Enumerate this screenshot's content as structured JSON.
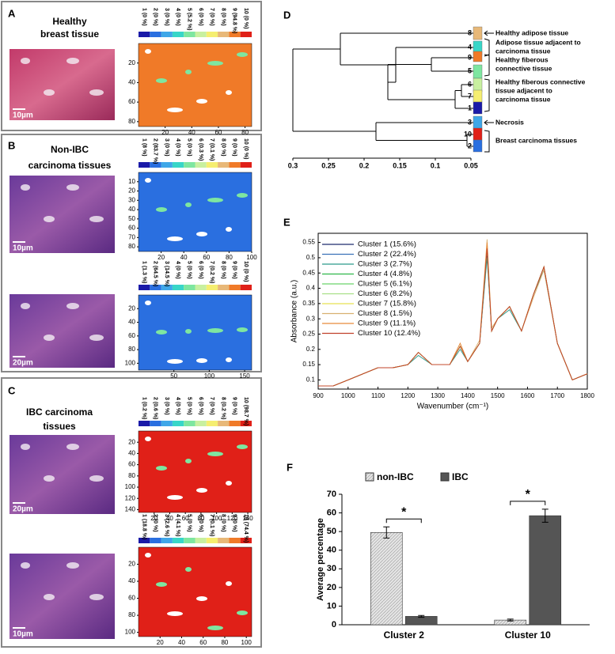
{
  "panels": {
    "cluster_colors": [
      "#1a1aa8",
      "#2a6fe0",
      "#3fa7e8",
      "#38d6c8",
      "#7ee6a0",
      "#c8f0a0",
      "#f5ee70",
      "#e8b878",
      "#f07a28",
      "#e02018"
    ],
    "A": {
      "letter": "A",
      "title": [
        "Healthy",
        "breast tissue"
      ],
      "maps": [
        {
          "colorbar": [
            "1 (0 %)",
            "2 (0 %)",
            "3 (0 %)",
            "4 (0 %)",
            "5 (5.2 %)",
            "6 (0 %)",
            "7 (0 %)",
            "8 (0 %)",
            "9 (94.8 %)",
            "10 (0 %)"
          ],
          "scale_bar": "10µm",
          "xlim": [
            0,
            85
          ],
          "ylim": [
            0,
            85
          ],
          "xticks": [
            20,
            40,
            60,
            80
          ],
          "yticks": [
            20,
            40,
            60,
            80
          ]
        }
      ]
    },
    "B": {
      "letter": "B",
      "title": [
        "Non-IBC",
        "carcinoma tissues"
      ],
      "maps": [
        {
          "colorbar": [
            "1 (8 %)",
            "2 (83.7 %)",
            "3 (0 %)",
            "4 (0 %)",
            "5 (0 %)",
            "6 (0.3 %)",
            "7 (0.1 %)",
            "8 (0 %)",
            "9 (0 %)",
            "10 (0 %)"
          ],
          "scale_bar": "10µm",
          "xlim": [
            0,
            100
          ],
          "ylim": [
            0,
            85
          ],
          "xticks": [
            20,
            40,
            60,
            80,
            100
          ],
          "yticks": [
            10,
            20,
            30,
            40,
            50,
            60,
            70,
            80
          ]
        },
        {
          "colorbar": [
            "1 (1.3 %)",
            "2 (64.5 %)",
            "3 (14.5 %)",
            "4 (0 %)",
            "5 (0 %)",
            "6 (0 %)",
            "7 (0.2 %)",
            "8 (0 %)",
            "9 (0 %)",
            "10 (0 %)"
          ],
          "scale_bar": "20µm",
          "xlim": [
            0,
            160
          ],
          "ylim": [
            0,
            110
          ],
          "xticks": [
            50,
            100,
            150
          ],
          "yticks": [
            20,
            40,
            60,
            80,
            100
          ]
        }
      ]
    },
    "C": {
      "letter": "C",
      "title": [
        "IBC carcinoma",
        "tissues"
      ],
      "maps": [
        {
          "colorbar": [
            "1 (0.2 %)",
            "2 (0.6 %)",
            "3 (0 %)",
            "4 (0 %)",
            "5 (0 %)",
            "6 (0 %)",
            "7 (0 %)",
            "8 (0.2 %)",
            "9 (0 %)",
            "10 (98.7 %)"
          ],
          "scale_bar": "20µm",
          "xlim": [
            0,
            145
          ],
          "ylim": [
            0,
            145
          ],
          "xticks": [
            20,
            40,
            60,
            80,
            100,
            120,
            140
          ],
          "yticks": [
            20,
            40,
            60,
            80,
            100,
            120,
            140
          ]
        },
        {
          "colorbar": [
            "1 (18.8 %)",
            "2 (0 %)",
            "3 (2.6 %)",
            "4 (4.1 %)",
            "5 (0 %)",
            "6 (0 %)",
            "7 (0.1 %)",
            "8 (0 %)",
            "9 (0 %)",
            "10 (74.4 %)"
          ],
          "scale_bar": "10µm",
          "xlim": [
            0,
            105
          ],
          "ylim": [
            0,
            105
          ],
          "xticks": [
            20,
            40,
            60,
            80,
            100
          ],
          "yticks": [
            20,
            40,
            60,
            80,
            100
          ]
        }
      ]
    },
    "D": {
      "letter": "D",
      "leaves": [
        8,
        4,
        9,
        5,
        6,
        7,
        1,
        3,
        10,
        2
      ],
      "xlim": [
        0.3,
        0.05
      ],
      "xticks": [
        0.3,
        0.25,
        0.2,
        0.15,
        0.1,
        0.05
      ],
      "annotations": [
        [
          "Healthy adipose tissue"
        ],
        [
          "Adipose tissue adjacent to",
          "carcinoma tissue"
        ],
        [
          "Healthy fiberous",
          "connective tissue"
        ],
        [
          "Healthy fiberous connective",
          "tissue adjacent to",
          "carcinoma tissue"
        ],
        [
          "Necrosis"
        ],
        [
          "Breast carcinoma tissues"
        ]
      ]
    }
  },
  "chart_data": [
    {
      "type": "line",
      "panel": "E",
      "x_label": "Wavenumber (cm⁻¹)",
      "y_label": "Absorbance (a.u.)",
      "x": [
        900,
        950,
        1000,
        1050,
        1100,
        1150,
        1200,
        1235,
        1280,
        1340,
        1375,
        1400,
        1440,
        1465,
        1480,
        1500,
        1540,
        1580,
        1620,
        1655,
        1700,
        1750,
        1800
      ],
      "xlim": [
        900,
        1800
      ],
      "ylim": [
        0.07,
        0.58
      ],
      "xticks": [
        900,
        1000,
        1100,
        1200,
        1300,
        1400,
        1500,
        1600,
        1700,
        1800
      ],
      "yticks": [
        0.1,
        0.15,
        0.2,
        0.25,
        0.3,
        0.35,
        0.4,
        0.45,
        0.5,
        0.55
      ],
      "series": [
        {
          "name": "Cluster 1 (15.6%)",
          "color": "#1f2a6e",
          "values": [
            0.08,
            0.08,
            0.1,
            0.12,
            0.14,
            0.14,
            0.15,
            0.19,
            0.15,
            0.15,
            0.21,
            0.16,
            0.22,
            0.52,
            0.26,
            0.3,
            0.34,
            0.26,
            0.38,
            0.47,
            0.22,
            0.1,
            0.12
          ]
        },
        {
          "name": "Cluster 2 (22.4%)",
          "color": "#3a72b8",
          "values": [
            0.08,
            0.08,
            0.1,
            0.12,
            0.14,
            0.14,
            0.15,
            0.19,
            0.15,
            0.15,
            0.21,
            0.16,
            0.22,
            0.53,
            0.26,
            0.3,
            0.34,
            0.26,
            0.38,
            0.47,
            0.22,
            0.1,
            0.12
          ]
        },
        {
          "name": "Cluster 3 (2.7%)",
          "color": "#2a9a8a",
          "values": [
            0.08,
            0.08,
            0.1,
            0.12,
            0.14,
            0.14,
            0.15,
            0.18,
            0.15,
            0.15,
            0.2,
            0.16,
            0.22,
            0.5,
            0.26,
            0.3,
            0.33,
            0.26,
            0.38,
            0.46,
            0.22,
            0.1,
            0.12
          ]
        },
        {
          "name": "Cluster 4 (4.8%)",
          "color": "#2fb84a",
          "values": [
            0.08,
            0.08,
            0.1,
            0.12,
            0.14,
            0.14,
            0.15,
            0.19,
            0.15,
            0.15,
            0.21,
            0.16,
            0.22,
            0.54,
            0.26,
            0.3,
            0.34,
            0.26,
            0.38,
            0.47,
            0.22,
            0.1,
            0.12
          ]
        },
        {
          "name": "Cluster 5 (6.1%)",
          "color": "#6ad46a",
          "values": [
            0.08,
            0.08,
            0.1,
            0.12,
            0.14,
            0.14,
            0.15,
            0.19,
            0.15,
            0.15,
            0.21,
            0.16,
            0.22,
            0.53,
            0.26,
            0.3,
            0.34,
            0.26,
            0.38,
            0.47,
            0.22,
            0.1,
            0.12
          ]
        },
        {
          "name": "Cluster 6 (8.2%)",
          "color": "#a8e088",
          "values": [
            0.08,
            0.08,
            0.1,
            0.12,
            0.14,
            0.14,
            0.15,
            0.19,
            0.15,
            0.15,
            0.21,
            0.16,
            0.22,
            0.53,
            0.26,
            0.3,
            0.34,
            0.26,
            0.38,
            0.47,
            0.22,
            0.1,
            0.12
          ]
        },
        {
          "name": "Cluster 7 (15.8%)",
          "color": "#e8e050",
          "values": [
            0.08,
            0.08,
            0.1,
            0.12,
            0.14,
            0.14,
            0.15,
            0.19,
            0.15,
            0.15,
            0.21,
            0.16,
            0.22,
            0.54,
            0.26,
            0.3,
            0.34,
            0.26,
            0.38,
            0.47,
            0.22,
            0.1,
            0.12
          ]
        },
        {
          "name": "Cluster 8 (1.5%)",
          "color": "#d8b070",
          "values": [
            0.08,
            0.08,
            0.1,
            0.12,
            0.14,
            0.14,
            0.15,
            0.19,
            0.15,
            0.15,
            0.22,
            0.16,
            0.23,
            0.56,
            0.27,
            0.3,
            0.34,
            0.26,
            0.37,
            0.46,
            0.22,
            0.1,
            0.12
          ]
        },
        {
          "name": "Cluster 9 (11.1%)",
          "color": "#e88a3a",
          "values": [
            0.08,
            0.08,
            0.1,
            0.12,
            0.14,
            0.14,
            0.15,
            0.19,
            0.15,
            0.15,
            0.22,
            0.16,
            0.22,
            0.55,
            0.26,
            0.3,
            0.34,
            0.26,
            0.38,
            0.47,
            0.22,
            0.1,
            0.12
          ]
        },
        {
          "name": "Cluster 10 (12.4%)",
          "color": "#c0402a",
          "values": [
            0.08,
            0.08,
            0.1,
            0.12,
            0.14,
            0.14,
            0.15,
            0.19,
            0.15,
            0.15,
            0.21,
            0.16,
            0.22,
            0.53,
            0.26,
            0.3,
            0.34,
            0.26,
            0.38,
            0.47,
            0.22,
            0.1,
            0.12
          ]
        }
      ]
    },
    {
      "type": "bar",
      "panel": "F",
      "y_label": "Average percentage",
      "categories": [
        "Cluster 2",
        "Cluster 10"
      ],
      "ylim": [
        0,
        70
      ],
      "yticks": [
        0,
        10,
        20,
        30,
        40,
        50,
        60,
        70
      ],
      "annotations": [
        "*",
        "*"
      ],
      "series": [
        {
          "name": "non-IBC",
          "color": "#dcdcdc",
          "values": [
            49.5,
            2.5
          ],
          "errors": [
            3,
            0.5
          ]
        },
        {
          "name": "IBC",
          "color": "#555555",
          "values": [
            4.5,
            58.5
          ],
          "errors": [
            0.5,
            3.5
          ]
        }
      ]
    }
  ]
}
